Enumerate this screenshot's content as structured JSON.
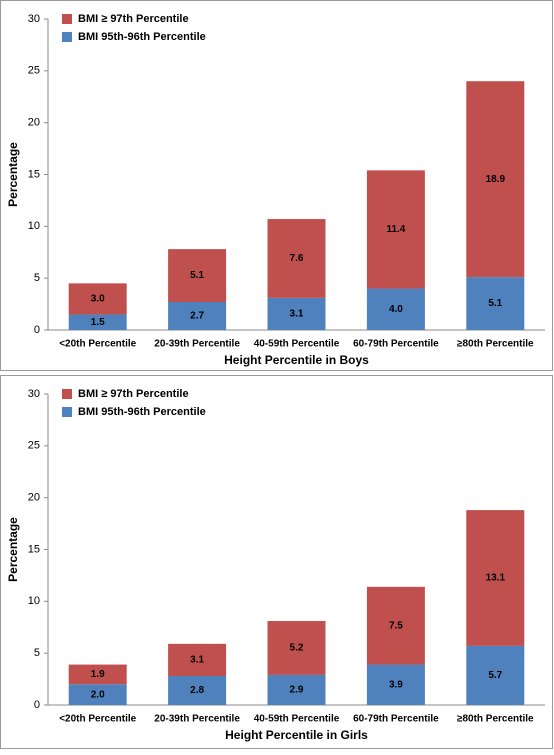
{
  "chart_data": [
    {
      "type": "bar",
      "stacked": true,
      "x_label": "Height Percentile in Boys",
      "y_label": "Percentage",
      "categories": [
        "<20th Percentile",
        "20-39th Percentile",
        "40-59th Percentile",
        "60-79th Percentile",
        "≥80th Percentile"
      ],
      "series": [
        {
          "name": "BMI 95th-96th Percentile",
          "color": "#4f81bd",
          "values": [
            1.5,
            2.7,
            3.1,
            4.0,
            5.1
          ],
          "value_labels": [
            "1.5",
            "2.7",
            "3.1",
            "4.0",
            "5.1"
          ]
        },
        {
          "name": "BMI ≥ 97th Percentile",
          "color": "#c0504d",
          "values": [
            3.0,
            5.1,
            7.6,
            11.4,
            18.9
          ],
          "value_labels": [
            "3.0",
            "5.1",
            "7.6",
            "11.4",
            "18.9"
          ]
        }
      ],
      "ylim": [
        0,
        30
      ],
      "yticks": [
        0,
        5,
        10,
        15,
        20,
        25,
        30
      ],
      "grid": false,
      "legend": "top-left"
    },
    {
      "type": "bar",
      "stacked": true,
      "x_label": "Height Percentile in Girls",
      "y_label": "Percentage",
      "categories": [
        "<20th Percentile",
        "20-39th Percentile",
        "40-59th Percentile",
        "60-79th Percentile",
        "≥80th Percentile"
      ],
      "series": [
        {
          "name": "BMI 95th-96th Percentile",
          "color": "#4f81bd",
          "values": [
            2.0,
            2.8,
            2.9,
            3.9,
            5.7
          ],
          "value_labels": [
            "2.0",
            "2.8",
            "2.9",
            "3.9",
            "5.7"
          ]
        },
        {
          "name": "BMI ≥ 97th Percentile",
          "color": "#c0504d",
          "values": [
            1.9,
            3.1,
            5.2,
            7.5,
            13.1
          ],
          "value_labels": [
            "1.9",
            "3.1",
            "5.2",
            "7.5",
            "13.1"
          ]
        }
      ],
      "ylim": [
        0,
        30
      ],
      "yticks": [
        0,
        5,
        10,
        15,
        20,
        25,
        30
      ],
      "grid": false,
      "legend": "top-left"
    }
  ]
}
